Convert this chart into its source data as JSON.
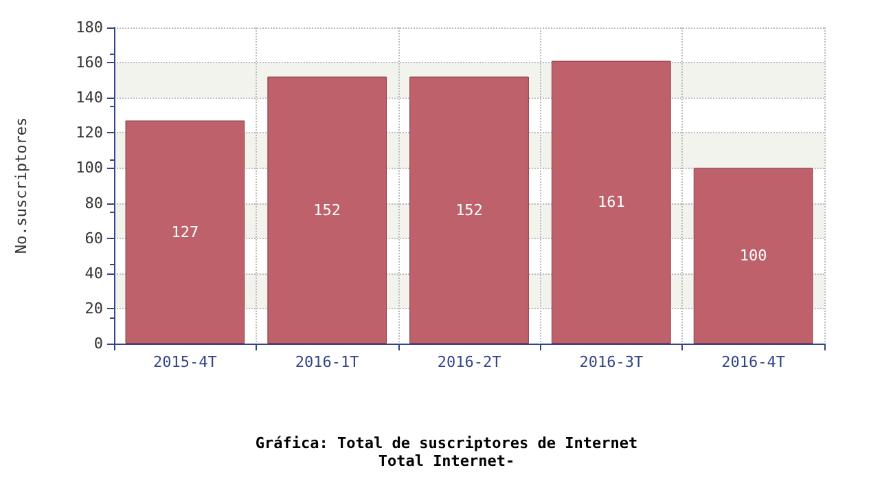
{
  "chart_data": {
    "type": "bar",
    "title": "Gráfica: Total de suscriptores de Internet",
    "subtitle": "Total Internet-",
    "ylabel": "No.suscriptores",
    "categories": [
      "2015-4T",
      "2016-1T",
      "2016-2T",
      "2016-3T",
      "2016-4T"
    ],
    "values": [
      127,
      152,
      152,
      161,
      100
    ],
    "color": "#bf616b",
    "ylim": [
      0,
      180
    ],
    "yticks": [
      0,
      20,
      40,
      60,
      80,
      100,
      120,
      140,
      160,
      180
    ],
    "grid": true,
    "data_labels": true
  }
}
